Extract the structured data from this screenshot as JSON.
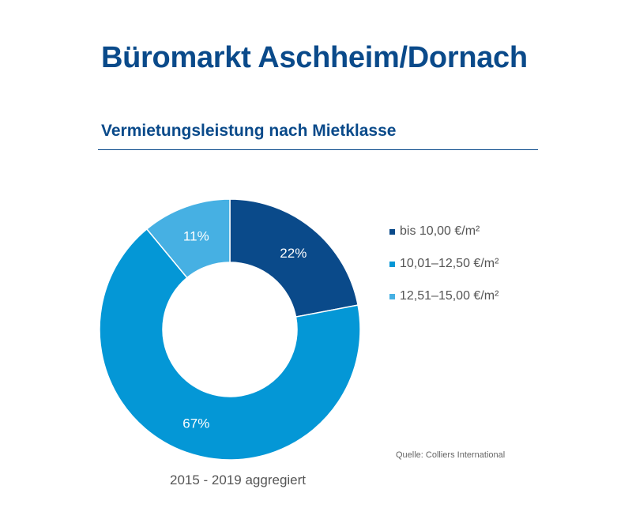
{
  "header": {
    "title": "Büromarkt Aschheim/Dornach",
    "subtitle": "Vermietungsleistung nach Mietklasse"
  },
  "chart_data": {
    "type": "pie",
    "variant": "donut",
    "categories": [
      "bis 10,00 €/m²",
      "10,01–12,50 €/m²",
      "12,51–15,00 €/m²"
    ],
    "values": [
      22,
      67,
      11
    ],
    "value_labels": [
      "22%",
      "67%",
      "11%"
    ],
    "unit": "%",
    "colors": [
      "#0a4a8a",
      "#0497d6",
      "#46b0e3"
    ],
    "label_color": "#ffffff",
    "legend_position": "right",
    "start_angle": "12 o'clock",
    "direction": "clockwise"
  },
  "source": "Quelle: Colliers International",
  "footnote": "2015 - 2019 aggregiert"
}
